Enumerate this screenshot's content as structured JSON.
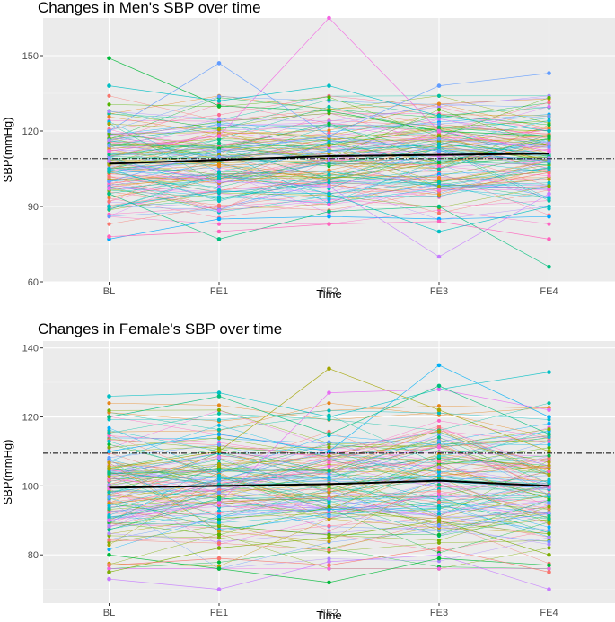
{
  "chart_data": [
    {
      "type": "line",
      "title": "Changes in Men's SBP over time",
      "xlabel": "Time",
      "ylabel": "SBP(mmHg)",
      "categories": [
        "BL",
        "FE1",
        "FE2",
        "FE3",
        "FE4"
      ],
      "ylim": [
        60,
        165
      ],
      "yticks": [
        60,
        90,
        120,
        150
      ],
      "reference_line": 109,
      "mean_series": {
        "name": "mean",
        "values": [
          107,
          108.5,
          110,
          110.5,
          111
        ]
      },
      "highlight_series": [
        {
          "name": "s1",
          "values": [
            149,
            130,
            128,
            120,
            118
          ],
          "color": "#00BA38"
        },
        {
          "name": "s2",
          "values": [
            120,
            147,
            118,
            112,
            108
          ],
          "color": "#619CFF"
        },
        {
          "name": "s3",
          "values": [
            112,
            118,
            165,
            120,
            112
          ],
          "color": "#F564E3"
        },
        {
          "name": "s4",
          "values": [
            138,
            132,
            138,
            126,
            120
          ],
          "color": "#00BFC4"
        },
        {
          "name": "s5",
          "values": [
            77,
            85,
            86,
            85,
            86
          ],
          "color": "#00A9FF"
        },
        {
          "name": "s6",
          "values": [
            108,
            100,
            98,
            70,
            95
          ],
          "color": "#C77CFF"
        },
        {
          "name": "s7",
          "values": [
            95,
            77,
            88,
            90,
            66
          ],
          "color": "#00BF7D"
        },
        {
          "name": "s8",
          "values": [
            100,
            112,
            118,
            138,
            143
          ],
          "color": "#619CFF"
        },
        {
          "name": "s9",
          "values": [
            78,
            80,
            83,
            84,
            77
          ],
          "color": "#FF62BC"
        },
        {
          "name": "s10",
          "values": [
            90,
            96,
            95,
            80,
            90
          ],
          "color": "#00BFC4"
        }
      ],
      "background_series_count": 130,
      "background_range": [
        85,
        132
      ]
    },
    {
      "type": "line",
      "title": "Changes in Female's SBP over time",
      "xlabel": "Time",
      "ylabel": "SBP(mmHg)",
      "categories": [
        "BL",
        "FE1",
        "FE2",
        "FE3",
        "FE4"
      ],
      "ylim": [
        66,
        142
      ],
      "yticks": [
        80,
        100,
        120,
        140
      ],
      "reference_line": 109.5,
      "mean_series": {
        "name": "mean",
        "values": [
          99.5,
          100,
          100.5,
          101.5,
          100
        ]
      },
      "highlight_series": [
        {
          "name": "s1",
          "values": [
            126,
            127,
            120,
            128,
            133
          ],
          "color": "#00BFC4"
        },
        {
          "name": "s2",
          "values": [
            105,
            110,
            134,
            122,
            110
          ],
          "color": "#A3A500"
        },
        {
          "name": "s3",
          "values": [
            110,
            115,
            110,
            135,
            120
          ],
          "color": "#00B0F6"
        },
        {
          "name": "s4",
          "values": [
            73,
            70,
            78,
            80,
            70
          ],
          "color": "#C77CFF"
        },
        {
          "name": "s5",
          "values": [
            80,
            76,
            72,
            79,
            77
          ],
          "color": "#00BA38"
        },
        {
          "name": "s6",
          "values": [
            90,
            95,
            127,
            128,
            122
          ],
          "color": "#E76BF3"
        },
        {
          "name": "s7",
          "values": [
            75,
            82,
            85,
            90,
            80
          ],
          "color": "#7CAE00"
        },
        {
          "name": "s8",
          "values": [
            120,
            126,
            115,
            129,
            115
          ],
          "color": "#00BF7D"
        },
        {
          "name": "s9",
          "values": [
            77,
            79,
            77,
            82,
            75
          ],
          "color": "#F8766D"
        }
      ],
      "background_series_count": 130,
      "background_range": [
        78,
        122
      ]
    }
  ]
}
